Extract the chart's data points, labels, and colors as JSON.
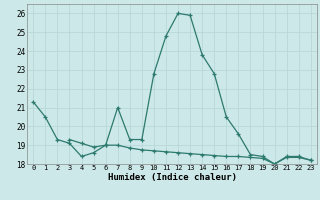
{
  "xlabel": "Humidex (Indice chaleur)",
  "background_color": "#cde8e8",
  "line_color": "#2d7a6e",
  "grid_color": "#b8d8d8",
  "x_values": [
    0,
    1,
    2,
    3,
    4,
    5,
    6,
    7,
    8,
    9,
    10,
    11,
    12,
    13,
    14,
    15,
    16,
    17,
    18,
    19,
    20,
    21,
    22,
    23
  ],
  "y1_values": [
    21.3,
    20.5,
    19.3,
    19.1,
    18.4,
    18.6,
    19.0,
    21.0,
    19.3,
    19.3,
    22.8,
    24.8,
    26.0,
    25.9,
    23.8,
    22.8,
    20.5,
    19.6,
    18.5,
    18.4,
    18.0,
    18.4,
    18.4,
    18.2
  ],
  "y2_values": [
    null,
    null,
    null,
    19.3,
    19.1,
    18.9,
    19.0,
    19.0,
    18.85,
    18.75,
    18.7,
    18.65,
    18.6,
    18.55,
    18.5,
    18.45,
    18.4,
    18.4,
    18.35,
    18.3,
    18.0,
    18.35,
    18.35,
    18.2
  ],
  "ylim": [
    18,
    26.5
  ],
  "yticks": [
    18,
    19,
    20,
    21,
    22,
    23,
    24,
    25,
    26
  ],
  "xlim": [
    -0.5,
    23.5
  ]
}
